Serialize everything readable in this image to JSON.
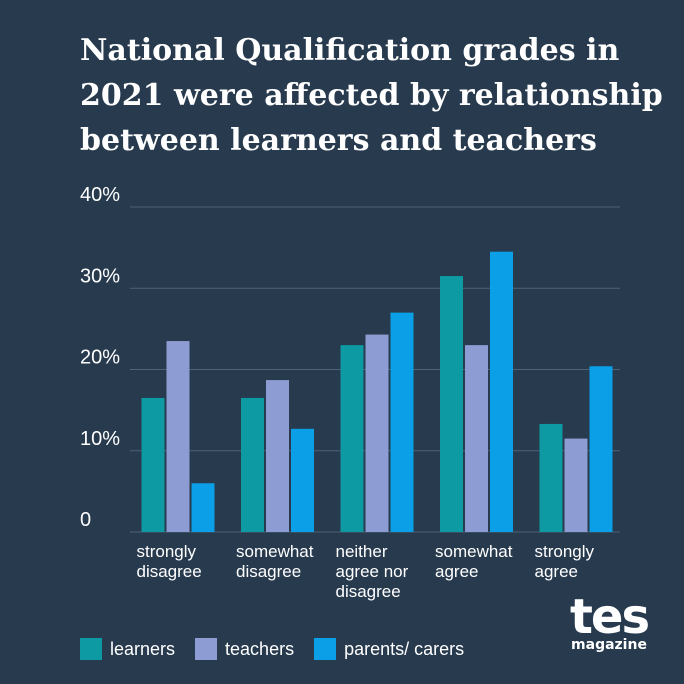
{
  "title_lines": [
    "National Qualification grades in",
    "2021 were affected by relationship",
    "between learners and teachers"
  ],
  "colors": {
    "background": "#273a4e",
    "learners": "#0e9aa3",
    "teachers": "#8d9dd3",
    "parents_carers": "#0a9fe6",
    "gridline": "#4d6278"
  },
  "chart_data": {
    "type": "bar",
    "title": "National Qualification grades in 2021 were affected by relationship between learners and teachers",
    "categories": [
      "strongly disagree",
      "somewhat disagree",
      "neither agree nor disagree",
      "somewhat agree",
      "strongly agree"
    ],
    "category_label_lines": [
      [
        "strongly",
        "disagree"
      ],
      [
        "somewhat",
        "disagree"
      ],
      [
        "neither",
        "agree nor",
        "disagree"
      ],
      [
        "somewhat",
        "agree"
      ],
      [
        "strongly",
        "agree"
      ]
    ],
    "series": [
      {
        "name": "learners",
        "values": [
          16.5,
          16.5,
          23,
          31.5,
          13.3
        ]
      },
      {
        "name": "teachers",
        "values": [
          23.5,
          18.7,
          24.3,
          23,
          11.5
        ]
      },
      {
        "name": "parents/ carers",
        "values": [
          6,
          12.7,
          27,
          34.5,
          20.4
        ]
      }
    ],
    "ylim": [
      0,
      40
    ],
    "yticks": [
      0,
      10,
      20,
      30,
      40
    ],
    "ytick_labels": [
      "0",
      "10%",
      "20%",
      "30%",
      "40%"
    ],
    "grid": true,
    "legend_position": "bottom-left"
  },
  "logo": {
    "main": "tes",
    "sub": "magazine"
  }
}
